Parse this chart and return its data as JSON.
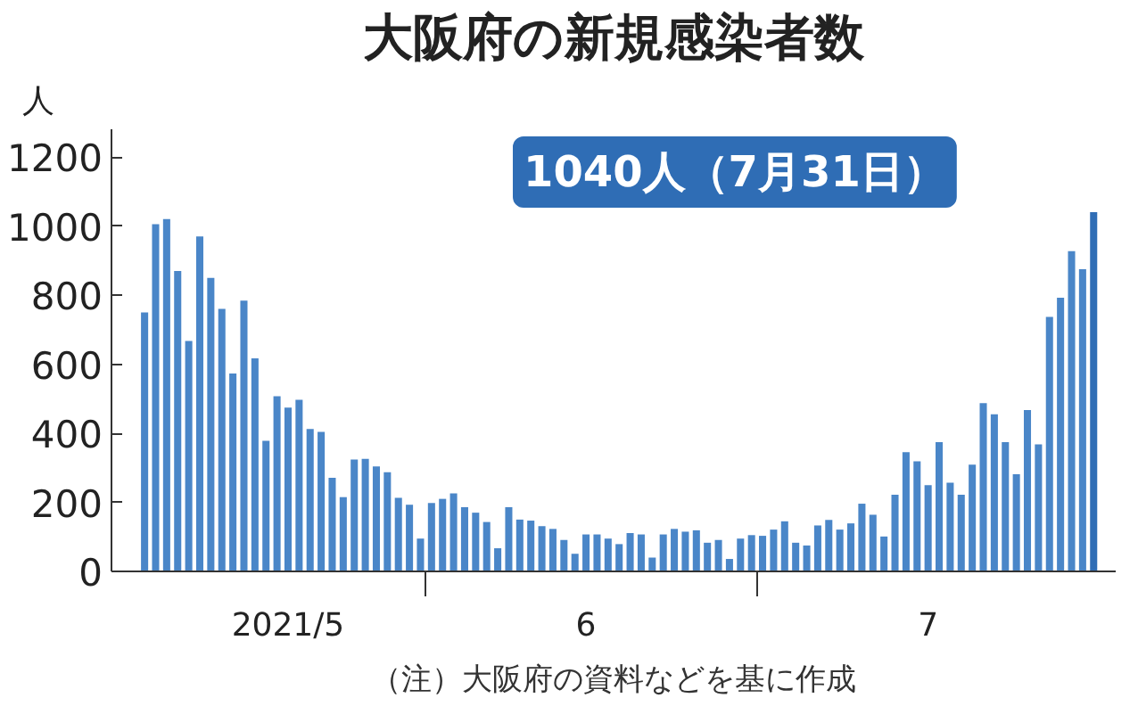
{
  "chart_data": {
    "type": "bar",
    "title": "大阪府の新規感染者数",
    "ylabel": "人",
    "annotations": [
      "1040人（7月31日）",
      "（注）大阪府の資料などを基に作成"
    ],
    "x": [
      "2021-05-06",
      "2021-05-07",
      "2021-05-08",
      "2021-05-09",
      "2021-05-10",
      "2021-05-11",
      "2021-05-12",
      "2021-05-13",
      "2021-05-14",
      "2021-05-15",
      "2021-05-16",
      "2021-05-17",
      "2021-05-18",
      "2021-05-19",
      "2021-05-20",
      "2021-05-21",
      "2021-05-22",
      "2021-05-23",
      "2021-05-24",
      "2021-05-25",
      "2021-05-26",
      "2021-05-27",
      "2021-05-28",
      "2021-05-29",
      "2021-05-30",
      "2021-05-31",
      "2021-06-01",
      "2021-06-02",
      "2021-06-03",
      "2021-06-04",
      "2021-06-05",
      "2021-06-06",
      "2021-06-07",
      "2021-06-08",
      "2021-06-09",
      "2021-06-10",
      "2021-06-11",
      "2021-06-12",
      "2021-06-13",
      "2021-06-14",
      "2021-06-15",
      "2021-06-16",
      "2021-06-17",
      "2021-06-18",
      "2021-06-19",
      "2021-06-20",
      "2021-06-21",
      "2021-06-22",
      "2021-06-23",
      "2021-06-24",
      "2021-06-25",
      "2021-06-26",
      "2021-06-27",
      "2021-06-28",
      "2021-06-29",
      "2021-06-30",
      "2021-07-01",
      "2021-07-02",
      "2021-07-03",
      "2021-07-04",
      "2021-07-05",
      "2021-07-06",
      "2021-07-07",
      "2021-07-08",
      "2021-07-09",
      "2021-07-10",
      "2021-07-11",
      "2021-07-12",
      "2021-07-13",
      "2021-07-14",
      "2021-07-15",
      "2021-07-16",
      "2021-07-17",
      "2021-07-18",
      "2021-07-19",
      "2021-07-20",
      "2021-07-21",
      "2021-07-22",
      "2021-07-23",
      "2021-07-24",
      "2021-07-25",
      "2021-07-26",
      "2021-07-27",
      "2021-07-28",
      "2021-07-29",
      "2021-07-30",
      "2021-07-31"
    ],
    "values": [
      750,
      1005,
      1020,
      870,
      667,
      970,
      850,
      760,
      573,
      784,
      617,
      378,
      507,
      474,
      497,
      412,
      404,
      271,
      215,
      324,
      326,
      304,
      287,
      213,
      193,
      95,
      198,
      210,
      226,
      186,
      170,
      143,
      67,
      186,
      150,
      147,
      131,
      123,
      91,
      51,
      107,
      107,
      95,
      79,
      111,
      107,
      40,
      107,
      123,
      115,
      119,
      83,
      91,
      36,
      95,
      105,
      103,
      121,
      145,
      83,
      75,
      133,
      149,
      121,
      139,
      196,
      164,
      101,
      222,
      345,
      319,
      250,
      374,
      257,
      222,
      309,
      487,
      455,
      374,
      281,
      467,
      368,
      737,
      792,
      927,
      875,
      1040
    ],
    "colors": [
      "#4a86c8",
      "#4a86c8",
      "#4a86c8",
      "#4a86c8",
      "#4a86c8",
      "#4a86c8",
      "#4a86c8",
      "#4a86c8",
      "#4a86c8",
      "#4a86c8",
      "#4a86c8",
      "#4a86c8",
      "#4a86c8",
      "#4a86c8",
      "#4a86c8",
      "#4a86c8",
      "#4a86c8",
      "#4a86c8",
      "#4a86c8",
      "#4a86c8",
      "#4a86c8",
      "#4a86c8",
      "#4a86c8",
      "#4a86c8",
      "#4a86c8",
      "#4a86c8",
      "#4a86c8",
      "#4a86c8",
      "#4a86c8",
      "#4a86c8",
      "#4a86c8",
      "#4a86c8",
      "#4a86c8",
      "#4a86c8",
      "#4a86c8",
      "#4a86c8",
      "#4a86c8",
      "#4a86c8",
      "#4a86c8",
      "#4a86c8",
      "#4a86c8",
      "#4a86c8",
      "#4a86c8",
      "#4a86c8",
      "#4a86c8",
      "#4a86c8",
      "#4a86c8",
      "#4a86c8",
      "#4a86c8",
      "#4a86c8",
      "#4a86c8",
      "#4a86c8",
      "#4a86c8",
      "#4a86c8",
      "#4a86c8",
      "#4a86c8",
      "#4a86c8",
      "#4a86c8",
      "#4a86c8",
      "#4a86c8",
      "#4a86c8",
      "#4a86c8",
      "#4a86c8",
      "#4a86c8",
      "#4a86c8",
      "#4a86c8",
      "#4a86c8",
      "#4a86c8",
      "#4a86c8",
      "#4a86c8",
      "#4a86c8",
      "#4a86c8",
      "#4a86c8",
      "#4a86c8",
      "#4a86c8",
      "#4a86c8",
      "#4a86c8",
      "#4a86c8",
      "#4a86c8",
      "#4a86c8",
      "#4a86c8",
      "#4a86c8",
      "#4a86c8",
      "#4a86c8",
      "#4a86c8",
      "#4a86c8",
      "#2f6db5"
    ],
    "xlim": [
      "2021-05-03",
      "2021-08-02"
    ],
    "xticks": [
      {
        "value": "2021-05-19",
        "label": "2021/5"
      },
      {
        "value": "2021-05-31T12:00",
        "label": null
      },
      {
        "value": "2021-06-15",
        "label": "6"
      },
      {
        "value": "2021-06-30T12:00",
        "label": null
      },
      {
        "value": "2021-07-16",
        "label": "7"
      }
    ],
    "ylim": [
      0,
      1280
    ],
    "yticks": [
      0,
      200,
      400,
      600,
      800,
      1000,
      1200
    ],
    "grid": false
  }
}
